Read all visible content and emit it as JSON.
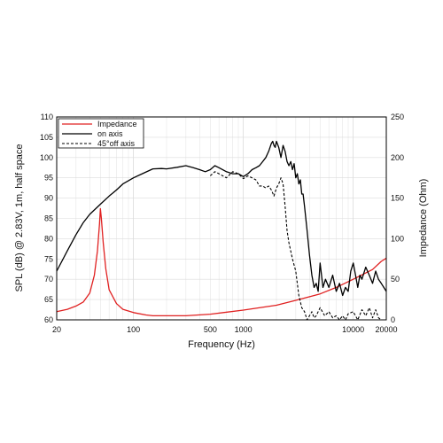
{
  "chart_data": {
    "type": "line",
    "xlabel": "Frequency (Hz)",
    "ylabel": "SPL (dB) @ 2.83V, 1m, half space",
    "y2label": "Impedance (Ohm)",
    "xscale": "log",
    "xlim": [
      20,
      20000
    ],
    "ylim": [
      60,
      110
    ],
    "y2lim": [
      0,
      250
    ],
    "grid": true,
    "legend_position": "top-left",
    "x_tick_labels": [
      "20",
      "100",
      "500",
      "1000",
      "10000",
      "20000"
    ],
    "x_tick_values": [
      20,
      100,
      500,
      1000,
      10000,
      20000
    ],
    "y_tick_labels": [
      "60",
      "65",
      "70",
      "75",
      "80",
      "85",
      "90",
      "95",
      "100",
      "105",
      "110"
    ],
    "y_tick_values": [
      60,
      65,
      70,
      75,
      80,
      85,
      90,
      95,
      100,
      105,
      110
    ],
    "y2_tick_labels": [
      "0",
      "50",
      "100",
      "150",
      "200",
      "250"
    ],
    "y2_tick_values": [
      0,
      50,
      100,
      150,
      200,
      250
    ],
    "colors": {
      "impedance": "#e02020",
      "on_axis": "#000000",
      "off_axis": "#000000",
      "grid": "#e6e6e6"
    },
    "series": [
      {
        "name": "Impedance",
        "axis": "y2",
        "style": "solid",
        "color": "#e02020",
        "x": [
          20,
          25,
          30,
          35,
          40,
          44,
          47,
          49,
          50,
          51,
          53,
          56,
          60,
          70,
          80,
          100,
          130,
          150,
          200,
          300,
          500,
          1000,
          2000,
          3000,
          5000,
          7000,
          10000,
          15000,
          18000,
          20000
        ],
        "y": [
          10,
          13,
          17,
          22,
          33,
          55,
          85,
          118,
          137,
          125,
          95,
          63,
          37,
          20,
          13,
          9,
          6,
          5,
          5,
          5,
          7,
          12,
          18,
          24,
          32,
          40,
          50,
          62,
          72,
          76
        ]
      },
      {
        "name": "on axis",
        "axis": "y",
        "style": "solid",
        "color": "#000000",
        "x": [
          20,
          25,
          30,
          35,
          40,
          50,
          60,
          70,
          80,
          100,
          120,
          150,
          180,
          200,
          250,
          300,
          350,
          400,
          450,
          500,
          550,
          600,
          700,
          800,
          900,
          1000,
          1100,
          1200,
          1300,
          1400,
          1500,
          1600,
          1700,
          1800,
          1850,
          1900,
          1950,
          2000,
          2100,
          2200,
          2300,
          2400,
          2500,
          2600,
          2700,
          2800,
          2900,
          3000,
          3100,
          3200,
          3300,
          3400,
          3500,
          3600,
          3800,
          4000,
          4200,
          4400,
          4600,
          4800,
          5000,
          5300,
          5600,
          6000,
          6500,
          7000,
          7500,
          8000,
          8500,
          9000,
          9500,
          10000,
          10500,
          11000,
          11500,
          12000,
          13000,
          14000,
          15000,
          16000,
          17000,
          18000,
          19000,
          20000
        ],
        "y": [
          72,
          77,
          81,
          84,
          86,
          88.5,
          90.5,
          92,
          93.5,
          95,
          96,
          97.2,
          97.3,
          97.2,
          97.6,
          98,
          97.5,
          97,
          96.5,
          97,
          98,
          97.5,
          96.5,
          96,
          96,
          95.3,
          96,
          97,
          97.5,
          98,
          99,
          100,
          101.5,
          103.5,
          104,
          103,
          102.5,
          104,
          102.5,
          100,
          103,
          101.5,
          99,
          98,
          99,
          97,
          98.5,
          95,
          96,
          93.5,
          94.5,
          91,
          91,
          88,
          82,
          76,
          71,
          68,
          69,
          67,
          74,
          68,
          70,
          68,
          71,
          67,
          69,
          66,
          68,
          67,
          72,
          74,
          71,
          68,
          71,
          70,
          73,
          71,
          69,
          72,
          70,
          69,
          68,
          67
        ]
      },
      {
        "name": "45°off axis",
        "axis": "y",
        "style": "dashed",
        "color": "#000000",
        "x": [
          500,
          550,
          600,
          700,
          800,
          900,
          1000,
          1100,
          1200,
          1300,
          1400,
          1500,
          1600,
          1700,
          1800,
          1900,
          2000,
          2100,
          2200,
          2300,
          2400,
          2500,
          2600,
          2800,
          3000,
          3200,
          3400,
          3600,
          3800,
          4000,
          4200,
          4400,
          4600,
          4800,
          5000,
          5500,
          6000,
          6500,
          7000,
          7500,
          8000,
          8500,
          9000,
          10000,
          11000,
          12000,
          13000,
          14000,
          15000,
          16000,
          17000,
          18000
        ],
        "y": [
          95.5,
          96.5,
          96,
          95,
          96.5,
          96,
          94.8,
          95.5,
          95,
          94.5,
          93,
          93,
          92.5,
          93,
          92,
          90.5,
          92.5,
          93.5,
          95,
          93.5,
          88,
          82,
          79,
          75,
          72,
          66,
          63,
          62,
          60,
          61,
          62,
          60.5,
          61,
          62,
          63,
          61,
          62,
          60.5,
          61,
          60,
          61,
          60,
          61.5,
          62,
          60,
          62.5,
          61,
          63,
          60.5,
          62.5,
          60.5,
          60
        ]
      }
    ]
  }
}
